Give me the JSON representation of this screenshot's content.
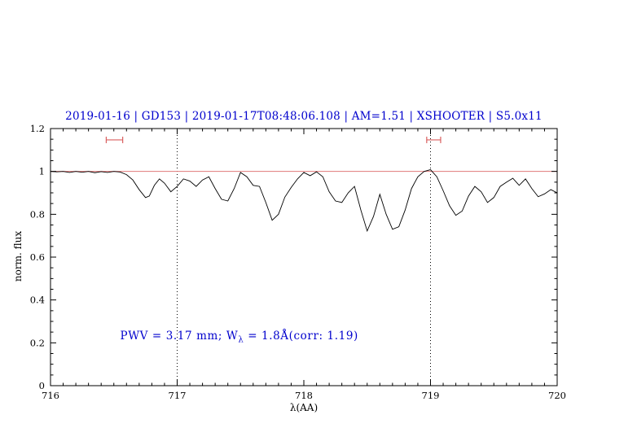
{
  "figure": {
    "annotation": {
      "prefix": "PWV = 3.17 mm; W",
      "sub": "λ",
      "suffix": " = 1.8Å(corr: 1.19)"
    },
    "colors": {
      "accent_blue": "#0000cd",
      "refline_red": "#e07a7a",
      "marker_red": "#d95f5f",
      "spectrum_black": "#000000",
      "vline_black": "#000000"
    }
  },
  "chart_data": {
    "type": "line",
    "title": "2019-01-16 | GD153 | 2019-01-17T08:48:06.108 | AM=1.51 | XSHOOTER | S5.0x11",
    "xlabel": "λ(AA)",
    "ylabel": "norm. flux",
    "xlim": [
      716,
      720
    ],
    "ylim": [
      0,
      1.2
    ],
    "x_ticks": [
      716,
      717,
      718,
      719,
      720
    ],
    "x_tick_labels": [
      "716",
      "717",
      "718",
      "719",
      "720"
    ],
    "y_ticks": [
      0,
      0.2,
      0.4,
      0.6,
      0.8,
      1,
      1.2
    ],
    "y_tick_labels": [
      "0",
      "0.2",
      "0.4",
      "0.6",
      "0.8",
      "1",
      "1.2"
    ],
    "x_minor_step": 0.1,
    "y_minor_step": 0.05,
    "grid": false,
    "legend": null,
    "refline_y": 1.0,
    "vlines": [
      717,
      719
    ],
    "markers": [
      {
        "x1": 716.44,
        "x2": 716.57,
        "y": 1.147
      },
      {
        "x1": 718.97,
        "x2": 719.08,
        "y": 1.147
      }
    ],
    "annotation_text": "PWV = 3.17 mm; W_λ = 1.8Å(corr: 1.19)",
    "annotation_pos": [
      716.55,
      0.225
    ],
    "series": [
      {
        "name": "spectrum",
        "color": "#000000",
        "points": [
          [
            716.0,
            1.0
          ],
          [
            716.05,
            0.998
          ],
          [
            716.1,
            1.0
          ],
          [
            716.15,
            0.995
          ],
          [
            716.2,
            1.0
          ],
          [
            716.25,
            0.996
          ],
          [
            716.3,
            1.0
          ],
          [
            716.35,
            0.994
          ],
          [
            716.4,
            0.999
          ],
          [
            716.45,
            0.995
          ],
          [
            716.5,
            1.0
          ],
          [
            716.55,
            0.997
          ],
          [
            716.6,
            0.985
          ],
          [
            716.65,
            0.96
          ],
          [
            716.7,
            0.915
          ],
          [
            716.75,
            0.878
          ],
          [
            716.78,
            0.885
          ],
          [
            716.82,
            0.935
          ],
          [
            716.86,
            0.965
          ],
          [
            716.9,
            0.945
          ],
          [
            716.95,
            0.905
          ],
          [
            717.0,
            0.93
          ],
          [
            717.05,
            0.965
          ],
          [
            717.1,
            0.955
          ],
          [
            717.15,
            0.93
          ],
          [
            717.2,
            0.96
          ],
          [
            717.25,
            0.975
          ],
          [
            717.3,
            0.92
          ],
          [
            717.35,
            0.87
          ],
          [
            717.4,
            0.862
          ],
          [
            717.45,
            0.92
          ],
          [
            717.5,
            0.995
          ],
          [
            717.55,
            0.975
          ],
          [
            717.6,
            0.935
          ],
          [
            717.65,
            0.93
          ],
          [
            717.7,
            0.855
          ],
          [
            717.75,
            0.772
          ],
          [
            717.8,
            0.8
          ],
          [
            717.85,
            0.88
          ],
          [
            717.9,
            0.925
          ],
          [
            717.95,
            0.965
          ],
          [
            718.0,
            0.995
          ],
          [
            718.05,
            0.98
          ],
          [
            718.1,
            0.998
          ],
          [
            718.15,
            0.975
          ],
          [
            718.2,
            0.905
          ],
          [
            718.25,
            0.862
          ],
          [
            718.3,
            0.855
          ],
          [
            718.35,
            0.9
          ],
          [
            718.4,
            0.93
          ],
          [
            718.45,
            0.82
          ],
          [
            718.5,
            0.722
          ],
          [
            718.55,
            0.79
          ],
          [
            718.6,
            0.893
          ],
          [
            718.65,
            0.8
          ],
          [
            718.7,
            0.73
          ],
          [
            718.75,
            0.742
          ],
          [
            718.8,
            0.82
          ],
          [
            718.85,
            0.92
          ],
          [
            718.9,
            0.975
          ],
          [
            718.95,
            1.0
          ],
          [
            719.0,
            1.008
          ],
          [
            719.05,
            0.975
          ],
          [
            719.1,
            0.91
          ],
          [
            719.15,
            0.84
          ],
          [
            719.2,
            0.795
          ],
          [
            719.25,
            0.815
          ],
          [
            719.3,
            0.885
          ],
          [
            719.35,
            0.93
          ],
          [
            719.4,
            0.905
          ],
          [
            719.45,
            0.855
          ],
          [
            719.5,
            0.878
          ],
          [
            719.55,
            0.93
          ],
          [
            719.6,
            0.95
          ],
          [
            719.65,
            0.968
          ],
          [
            719.7,
            0.935
          ],
          [
            719.75,
            0.965
          ],
          [
            719.8,
            0.92
          ],
          [
            719.85,
            0.882
          ],
          [
            719.9,
            0.895
          ],
          [
            719.95,
            0.915
          ],
          [
            720.0,
            0.9
          ]
        ]
      }
    ]
  }
}
